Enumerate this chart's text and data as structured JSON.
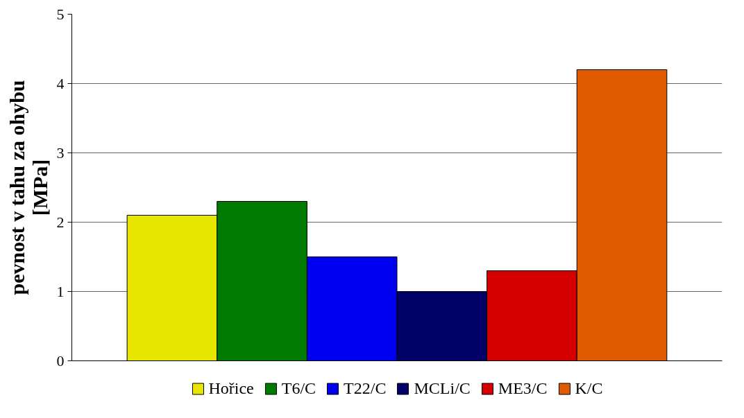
{
  "chart_data": {
    "type": "bar",
    "ylabel": "pevnost v tahu za ohybu\n[MPa]",
    "categories": [
      null
    ],
    "series": [
      {
        "name": "Hořice",
        "color": "#e6e600",
        "values": [
          2.1
        ]
      },
      {
        "name": "T6/C",
        "color": "#007a00",
        "values": [
          2.3
        ]
      },
      {
        "name": "T22/C",
        "color": "#0000f0",
        "values": [
          1.5
        ]
      },
      {
        "name": "MCLi/C",
        "color": "#000066",
        "values": [
          1.0
        ]
      },
      {
        "name": "ME3/C",
        "color": "#d40000",
        "values": [
          1.3
        ]
      },
      {
        "name": "K/C",
        "color": "#e05a00",
        "values": [
          4.2
        ]
      }
    ],
    "ylim": [
      0,
      5
    ],
    "yticks": [
      0,
      1,
      2,
      3,
      4,
      5
    ],
    "grid": "y",
    "legend": "bottom"
  }
}
